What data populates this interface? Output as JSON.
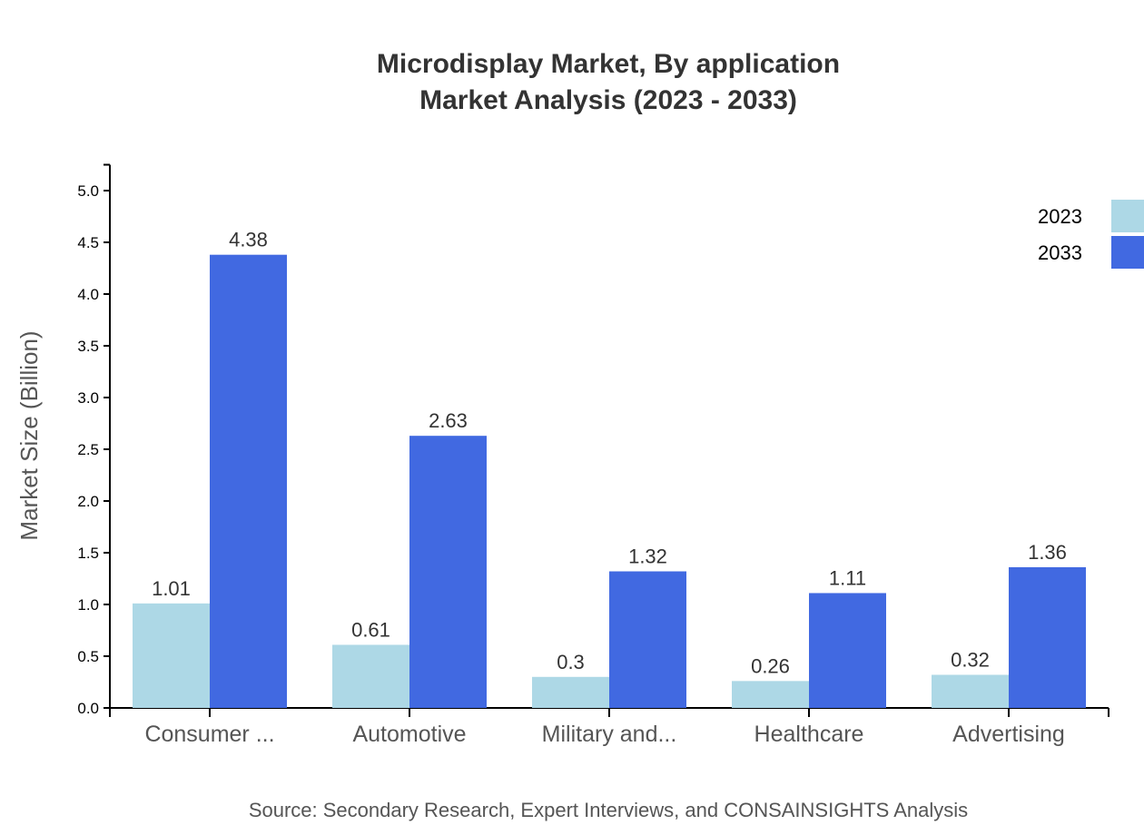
{
  "chart_data": {
    "type": "bar",
    "title": "Microdisplay Market, By application",
    "subtitle": "Market Analysis (2023 - 2033)",
    "xlabel": "",
    "ylabel": "Market Size (Billion)",
    "ylim": [
      0,
      5.25
    ],
    "yticks": [
      "0.0",
      "0.5",
      "1.0",
      "1.5",
      "2.0",
      "2.5",
      "3.0",
      "3.5",
      "4.0",
      "4.5",
      "5.0"
    ],
    "categories": [
      "Consumer ...",
      "Automotive",
      "Military and...",
      "Healthcare",
      "Advertising"
    ],
    "series": [
      {
        "name": "2023",
        "color": "#ADD8E6",
        "values": [
          1.01,
          0.61,
          0.3,
          0.26,
          0.32
        ]
      },
      {
        "name": "2033",
        "color": "#4169E1",
        "values": [
          4.38,
          2.63,
          1.32,
          1.11,
          1.36
        ]
      }
    ],
    "grid": false,
    "legend_position": "top-right",
    "source": "Source: Secondary Research, Expert Interviews, and CONSAINSIGHTS Analysis"
  }
}
